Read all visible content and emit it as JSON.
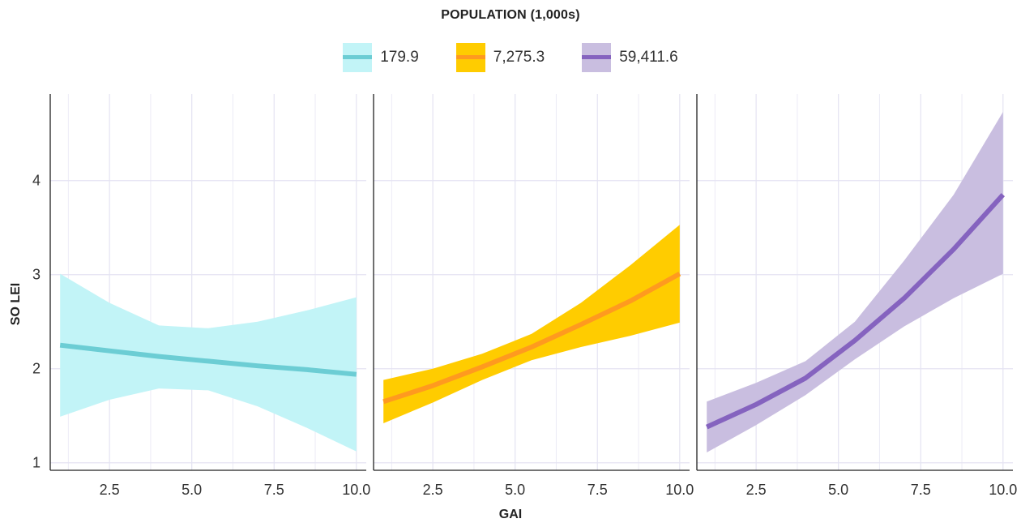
{
  "legend": {
    "title": "POPULATION (1,000s)",
    "items": [
      {
        "label": "179.9",
        "line_color": "#6CCDD4",
        "band_color": "#C2F4F7"
      },
      {
        "label": "7,275.3",
        "line_color": "#FF9A1F",
        "band_color": "#FFCC00"
      },
      {
        "label": "59,411.6",
        "line_color": "#8563BF",
        "band_color": "#C9BEE0"
      }
    ]
  },
  "chart_data": {
    "type": "line",
    "xlabel": "GAI",
    "ylabel": "SO LEI",
    "xlim": [
      0.7,
      10.3
    ],
    "ylim": [
      0.92,
      4.92
    ],
    "x_ticks": [
      2.5,
      5.0,
      7.5,
      10.0
    ],
    "x_tick_labels": [
      "2.5",
      "5.0",
      "7.5",
      "10.0"
    ],
    "y_ticks": [
      1,
      2,
      3,
      4
    ],
    "y_tick_labels": [
      "1",
      "2",
      "3",
      "4"
    ],
    "grid": true,
    "facets": [
      {
        "series_name": "179.9",
        "x": [
          1.0,
          2.5,
          4.0,
          5.5,
          7.0,
          8.5,
          10.0
        ],
        "y": [
          2.25,
          2.19,
          2.13,
          2.08,
          2.03,
          1.99,
          1.94
        ],
        "y_lower": [
          1.49,
          1.67,
          1.79,
          1.77,
          1.6,
          1.37,
          1.12
        ],
        "y_upper": [
          3.01,
          2.7,
          2.46,
          2.43,
          2.5,
          2.62,
          2.76
        ]
      },
      {
        "series_name": "7,275.3",
        "x": [
          1.0,
          2.5,
          4.0,
          5.5,
          7.0,
          8.5,
          10.0
        ],
        "y": [
          1.65,
          1.82,
          2.02,
          2.23,
          2.47,
          2.72,
          3.01
        ],
        "y_lower": [
          1.42,
          1.64,
          1.88,
          2.09,
          2.23,
          2.35,
          2.49
        ],
        "y_upper": [
          1.88,
          2.0,
          2.16,
          2.37,
          2.7,
          3.1,
          3.53
        ]
      },
      {
        "series_name": "59,411.6",
        "x": [
          1.0,
          2.5,
          4.0,
          5.5,
          7.0,
          8.5,
          10.0
        ],
        "y": [
          1.38,
          1.62,
          1.9,
          2.3,
          2.75,
          3.27,
          3.85
        ],
        "y_lower": [
          1.11,
          1.4,
          1.72,
          2.1,
          2.45,
          2.75,
          3.01
        ],
        "y_upper": [
          1.65,
          1.85,
          2.08,
          2.5,
          3.15,
          3.85,
          4.73
        ]
      }
    ]
  }
}
